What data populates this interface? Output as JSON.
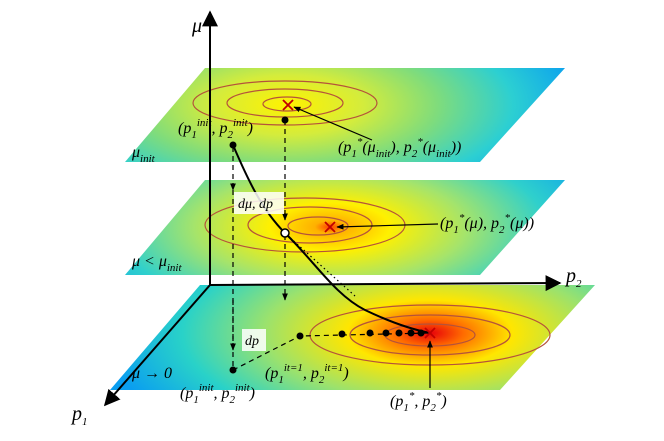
{
  "axes": {
    "mu": "μ",
    "p1": [
      "p",
      "1"
    ],
    "p2": [
      "p",
      "2"
    ]
  },
  "planes": [
    {
      "label": [
        "μ",
        "init"
      ]
    },
    {
      "label": [
        "μ < μ",
        "init"
      ]
    },
    {
      "label": "μ → 0"
    }
  ],
  "annotations": {
    "top_start": [
      "(",
      "p",
      "1",
      "init",
      ", ",
      "p",
      "2",
      "init",
      ")"
    ],
    "top_optimum": [
      "(",
      "p",
      "1",
      "*",
      "(μ",
      "init",
      "), ",
      "p",
      "2",
      "*",
      "(μ",
      "init",
      "))"
    ],
    "step": "dμ,  dp⃗",
    "middle_optimum": [
      "(",
      "p",
      "1",
      "*",
      "(μ), ",
      "p",
      "2",
      "*",
      "(μ))"
    ],
    "bottom_step": "dp⃗",
    "first_iterate": [
      "(",
      "p",
      "1",
      "it=1",
      ", ",
      "p",
      "2",
      "it=1",
      ")"
    ],
    "bottom_start": [
      "(",
      "p",
      "1",
      "init",
      ", ",
      "p",
      "2",
      "init",
      ")"
    ],
    "bottom_optimum": [
      "(",
      "p",
      "1",
      "*",
      ", ",
      "p",
      "2",
      "*",
      ")"
    ]
  }
}
